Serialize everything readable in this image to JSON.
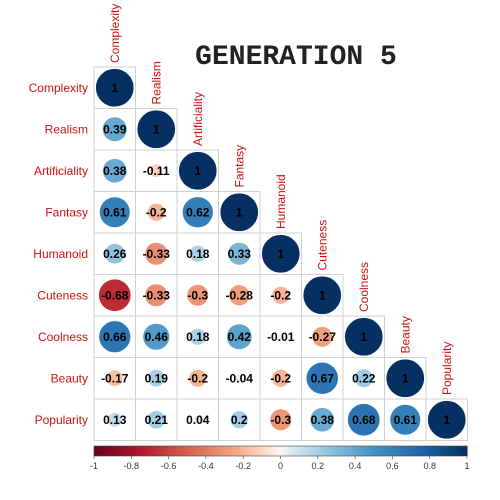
{
  "chart_data": {
    "type": "heatmap",
    "title": "GENERATION 5",
    "variables": [
      "Complexity",
      "Realism",
      "Artificiality",
      "Fantasy",
      "Humanoid",
      "Cuteness",
      "Coolness",
      "Beauty",
      "Popularity"
    ],
    "matrix_lower": [
      [
        1
      ],
      [
        0.39,
        1
      ],
      [
        0.38,
        -0.11,
        1
      ],
      [
        0.61,
        -0.2,
        0.62,
        1
      ],
      [
        0.26,
        -0.33,
        0.18,
        0.33,
        1
      ],
      [
        -0.68,
        -0.33,
        -0.3,
        -0.28,
        -0.2,
        1
      ],
      [
        0.66,
        0.46,
        0.18,
        0.42,
        -0.01,
        -0.27,
        1
      ],
      [
        -0.17,
        0.19,
        -0.2,
        -0.04,
        -0.2,
        0.67,
        0.22,
        1
      ],
      [
        0.13,
        0.21,
        0.04,
        0.2,
        -0.3,
        0.38,
        0.68,
        0.61,
        1
      ]
    ],
    "colorbar_ticks": [
      "-1",
      "-0.8",
      "-0.6",
      "-0.4",
      "-0.2",
      "0",
      "0.2",
      "0.4",
      "0.6",
      "0.8",
      "1"
    ],
    "colorbar_range": [
      -1,
      1
    ],
    "colors": {
      "label": "#cc1111",
      "grid": "#d0d0d0",
      "negative": "#67001f",
      "positive": "#053061",
      "neutral": "#f7f7f7"
    }
  }
}
